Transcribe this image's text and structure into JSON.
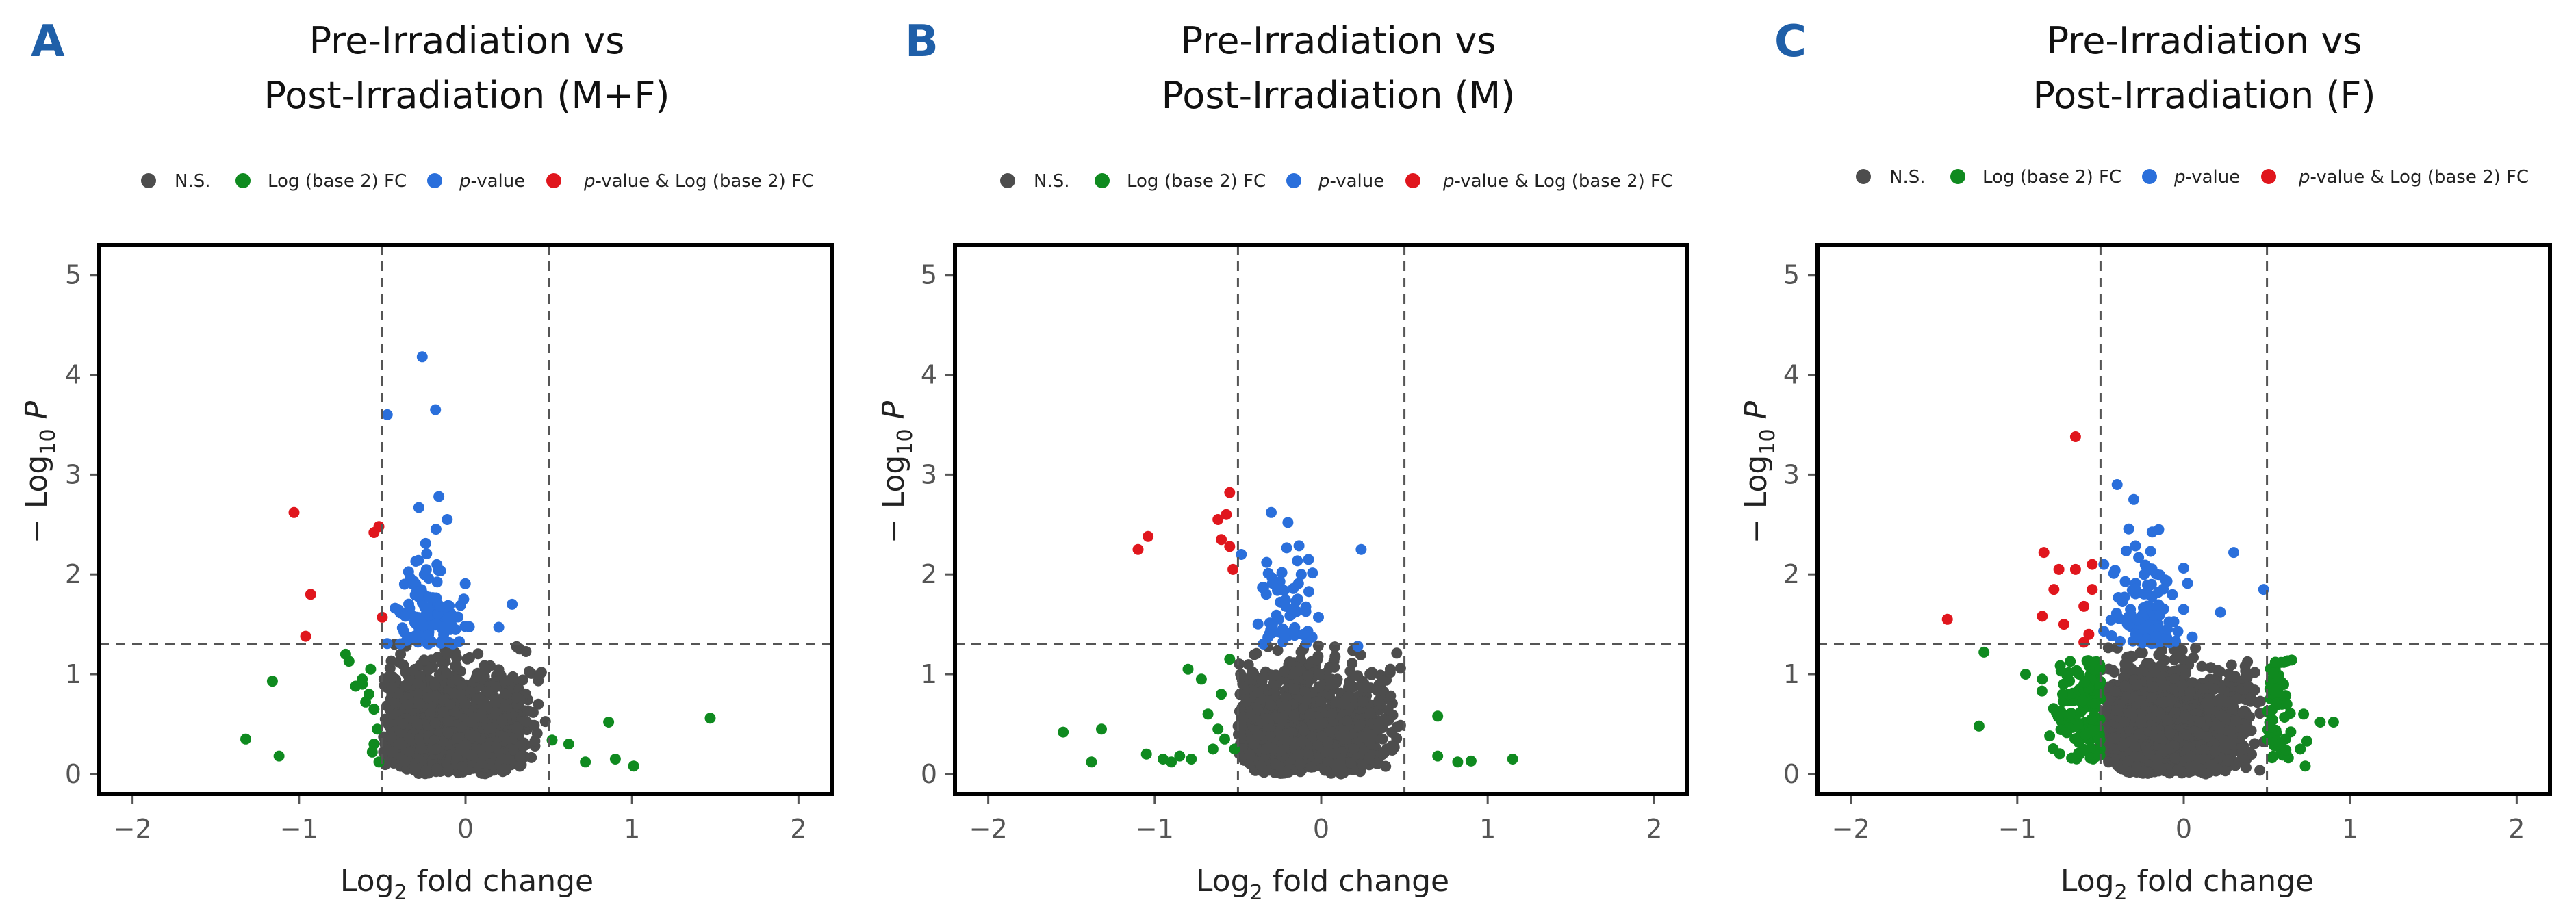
{
  "legend": {
    "ns": "N.S.",
    "fc": "Log (base 2) FC",
    "p_italic": "p",
    "p_suffix": "-value",
    "both_italic": "p",
    "both_suffix": "-value & Log (base 2) FC"
  },
  "colors": {
    "ns": "#4d4d4d",
    "fc": "#0f8a1f",
    "p": "#2a6fdb",
    "both": "#e0161d",
    "letter": "#1f5fa8"
  },
  "axis": {
    "xlabel_pre": "Log",
    "xlabel_sub": "2",
    "xlabel_post": " fold change",
    "ylabel_pre": "− Log",
    "ylabel_sub": "10",
    "ylabel_post": " P"
  },
  "chart_data": [
    {
      "type": "scatter",
      "panel": "A",
      "title_line1": "Pre-Irradiation vs",
      "title_line2": "Post-Irradiation (M+F)",
      "xlim": [
        -2.2,
        2.2
      ],
      "ylim": [
        -0.2,
        5.3
      ],
      "xticks": [
        -2,
        -1,
        0,
        1,
        2
      ],
      "yticks": [
        0,
        1,
        2,
        3,
        4,
        5
      ],
      "fc_cutoff": 0.5,
      "p_cutoff_log": 1.3,
      "series": {
        "red": [
          [
            -1.03,
            2.62
          ],
          [
            -0.93,
            1.8
          ],
          [
            -0.96,
            1.38
          ],
          [
            -0.52,
            2.48
          ],
          [
            -0.55,
            2.42
          ],
          [
            -0.5,
            1.57
          ]
        ],
        "green": [
          [
            -1.32,
            0.35
          ],
          [
            -1.16,
            0.93
          ],
          [
            -1.12,
            0.18
          ],
          [
            -0.72,
            1.2
          ],
          [
            -0.7,
            1.13
          ],
          [
            -0.62,
            0.95
          ],
          [
            -0.66,
            0.88
          ],
          [
            -0.58,
            0.8
          ],
          [
            -0.6,
            0.72
          ],
          [
            -0.55,
            0.65
          ],
          [
            -0.57,
            1.05
          ],
          [
            -0.62,
            0.9
          ],
          [
            -0.53,
            0.45
          ],
          [
            -0.55,
            0.3
          ],
          [
            -0.52,
            0.12
          ],
          [
            -0.56,
            0.22
          ],
          [
            0.52,
            0.34
          ],
          [
            0.62,
            0.3
          ],
          [
            0.72,
            0.12
          ],
          [
            0.86,
            0.52
          ],
          [
            0.9,
            0.15
          ],
          [
            1.01,
            0.08
          ],
          [
            1.47,
            0.56
          ]
        ],
        "blue_fixed": [
          [
            -0.26,
            4.18
          ],
          [
            -0.47,
            3.6
          ],
          [
            -0.18,
            3.65
          ],
          [
            -0.28,
            2.67
          ],
          [
            -0.16,
            2.78
          ],
          [
            -0.11,
            2.55
          ],
          [
            0.28,
            1.7
          ],
          [
            0.2,
            1.47
          ]
        ],
        "blue_count": 110,
        "ns_count": 2400
      }
    },
    {
      "type": "scatter",
      "panel": "B",
      "title_line1": "Pre-Irradiation vs",
      "title_line2": "Post-Irradiation (M)",
      "xlim": [
        -2.2,
        2.2
      ],
      "ylim": [
        -0.2,
        5.3
      ],
      "xticks": [
        -2,
        -1,
        0,
        1,
        2
      ],
      "yticks": [
        0,
        1,
        2,
        3,
        4,
        5
      ],
      "fc_cutoff": 0.5,
      "p_cutoff_log": 1.3,
      "series": {
        "red": [
          [
            -1.1,
            2.25
          ],
          [
            -1.04,
            2.38
          ],
          [
            -0.62,
            2.55
          ],
          [
            -0.55,
            2.82
          ],
          [
            -0.57,
            2.6
          ],
          [
            -0.6,
            2.35
          ],
          [
            -0.53,
            2.05
          ],
          [
            -0.55,
            2.28
          ]
        ],
        "green": [
          [
            -1.55,
            0.42
          ],
          [
            -1.38,
            0.12
          ],
          [
            -1.32,
            0.45
          ],
          [
            -1.05,
            0.2
          ],
          [
            -0.95,
            0.15
          ],
          [
            -0.9,
            0.12
          ],
          [
            -0.85,
            0.18
          ],
          [
            -0.78,
            0.15
          ],
          [
            -0.8,
            1.05
          ],
          [
            -0.72,
            0.95
          ],
          [
            -0.68,
            0.6
          ],
          [
            -0.62,
            0.45
          ],
          [
            -0.58,
            0.35
          ],
          [
            -0.55,
            1.15
          ],
          [
            -0.52,
            0.25
          ],
          [
            -0.65,
            0.25
          ],
          [
            -0.6,
            0.8
          ],
          [
            0.7,
            0.18
          ],
          [
            0.7,
            0.58
          ],
          [
            0.82,
            0.12
          ],
          [
            0.9,
            0.13
          ],
          [
            1.15,
            0.15
          ]
        ],
        "blue_fixed": [
          [
            -0.3,
            2.62
          ],
          [
            -0.2,
            2.52
          ],
          [
            0.24,
            2.25
          ],
          [
            -0.48,
            2.2
          ],
          [
            -0.12,
            2.0
          ],
          [
            0.22,
            1.28
          ]
        ],
        "blue_count": 55,
        "ns_count": 2400
      }
    },
    {
      "type": "scatter",
      "panel": "C",
      "title_line1": "Pre-Irradiation vs",
      "title_line2": "Post-Irradiation (F)",
      "xlim": [
        -2.2,
        2.2
      ],
      "ylim": [
        -0.2,
        5.3
      ],
      "xticks": [
        -2,
        -1,
        0,
        1,
        2
      ],
      "yticks": [
        0,
        1,
        2,
        3,
        4,
        5
      ],
      "fc_cutoff": 0.5,
      "p_cutoff_log": 1.3,
      "series": {
        "red": [
          [
            -1.42,
            1.55
          ],
          [
            -0.65,
            3.38
          ],
          [
            -0.84,
            2.22
          ],
          [
            -0.75,
            2.05
          ],
          [
            -0.65,
            2.05
          ],
          [
            -0.55,
            2.1
          ],
          [
            -0.78,
            1.85
          ],
          [
            -0.6,
            1.68
          ],
          [
            -0.72,
            1.5
          ],
          [
            -0.85,
            1.58
          ],
          [
            -0.55,
            1.85
          ],
          [
            -0.57,
            1.4
          ],
          [
            -0.6,
            1.32
          ]
        ],
        "green": [
          [
            -1.2,
            1.22
          ],
          [
            -1.23,
            0.48
          ],
          [
            -0.95,
            1.0
          ],
          [
            -0.85,
            0.95
          ],
          [
            0.55,
            1.12
          ],
          [
            0.7,
            0.25
          ],
          [
            0.73,
            0.08
          ],
          [
            0.72,
            0.6
          ],
          [
            0.82,
            0.52
          ],
          [
            0.9,
            0.52
          ],
          [
            0.62,
            0.7
          ],
          [
            0.58,
            0.3
          ]
        ],
        "green_count": 200,
        "blue_fixed": [
          [
            -0.4,
            2.9
          ],
          [
            -0.3,
            2.75
          ],
          [
            -0.15,
            2.45
          ],
          [
            0.3,
            2.22
          ],
          [
            0.48,
            1.85
          ],
          [
            0.22,
            1.62
          ],
          [
            -0.48,
            2.1
          ]
        ],
        "blue_count": 110,
        "ns_count": 3000
      }
    }
  ]
}
